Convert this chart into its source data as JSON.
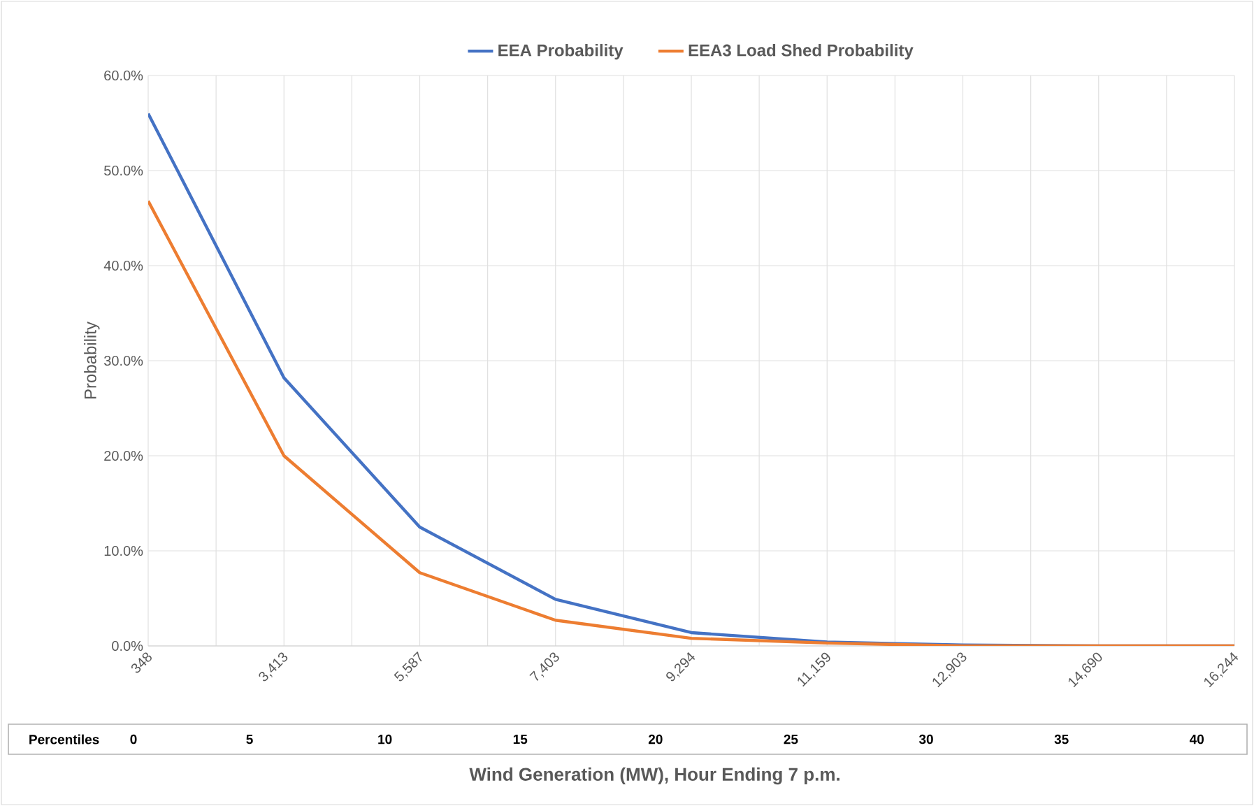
{
  "chart_data": {
    "type": "line",
    "xlabel": "Wind Generation (MW), Hour Ending 7 p.m.",
    "ylabel": "Probability",
    "categories": [
      "348",
      "3,413",
      "5,587",
      "7,403",
      "9,294",
      "11,159",
      "12,903",
      "14,690",
      "16,244"
    ],
    "series": [
      {
        "name": "EEA Probability",
        "color": "#4472c4",
        "values": [
          56.0,
          28.2,
          12.5,
          4.9,
          1.4,
          0.4,
          0.1,
          0.0,
          0.0
        ]
      },
      {
        "name": "EEA3 Load Shed Probability",
        "color": "#ed7d31",
        "values": [
          46.8,
          20.0,
          7.7,
          2.7,
          0.8,
          0.3,
          0.0,
          0.0,
          0.0
        ]
      }
    ],
    "ylim": [
      0,
      60
    ],
    "yticks": [
      {
        "value": 0,
        "label": "0.0%"
      },
      {
        "value": 10,
        "label": "10.0%"
      },
      {
        "value": 20,
        "label": "20.0%"
      },
      {
        "value": 30,
        "label": "30.0%"
      },
      {
        "value": 40,
        "label": "40.0%"
      },
      {
        "value": 50,
        "label": "50.0%"
      },
      {
        "value": 60,
        "label": "60.0%"
      }
    ],
    "grid": true,
    "legend": "top",
    "marker": "none",
    "line_style": "solid",
    "annotations": [
      "Percentiles",
      "0",
      "5",
      "10",
      "15",
      "20",
      "25",
      "30",
      "35",
      "40"
    ]
  }
}
